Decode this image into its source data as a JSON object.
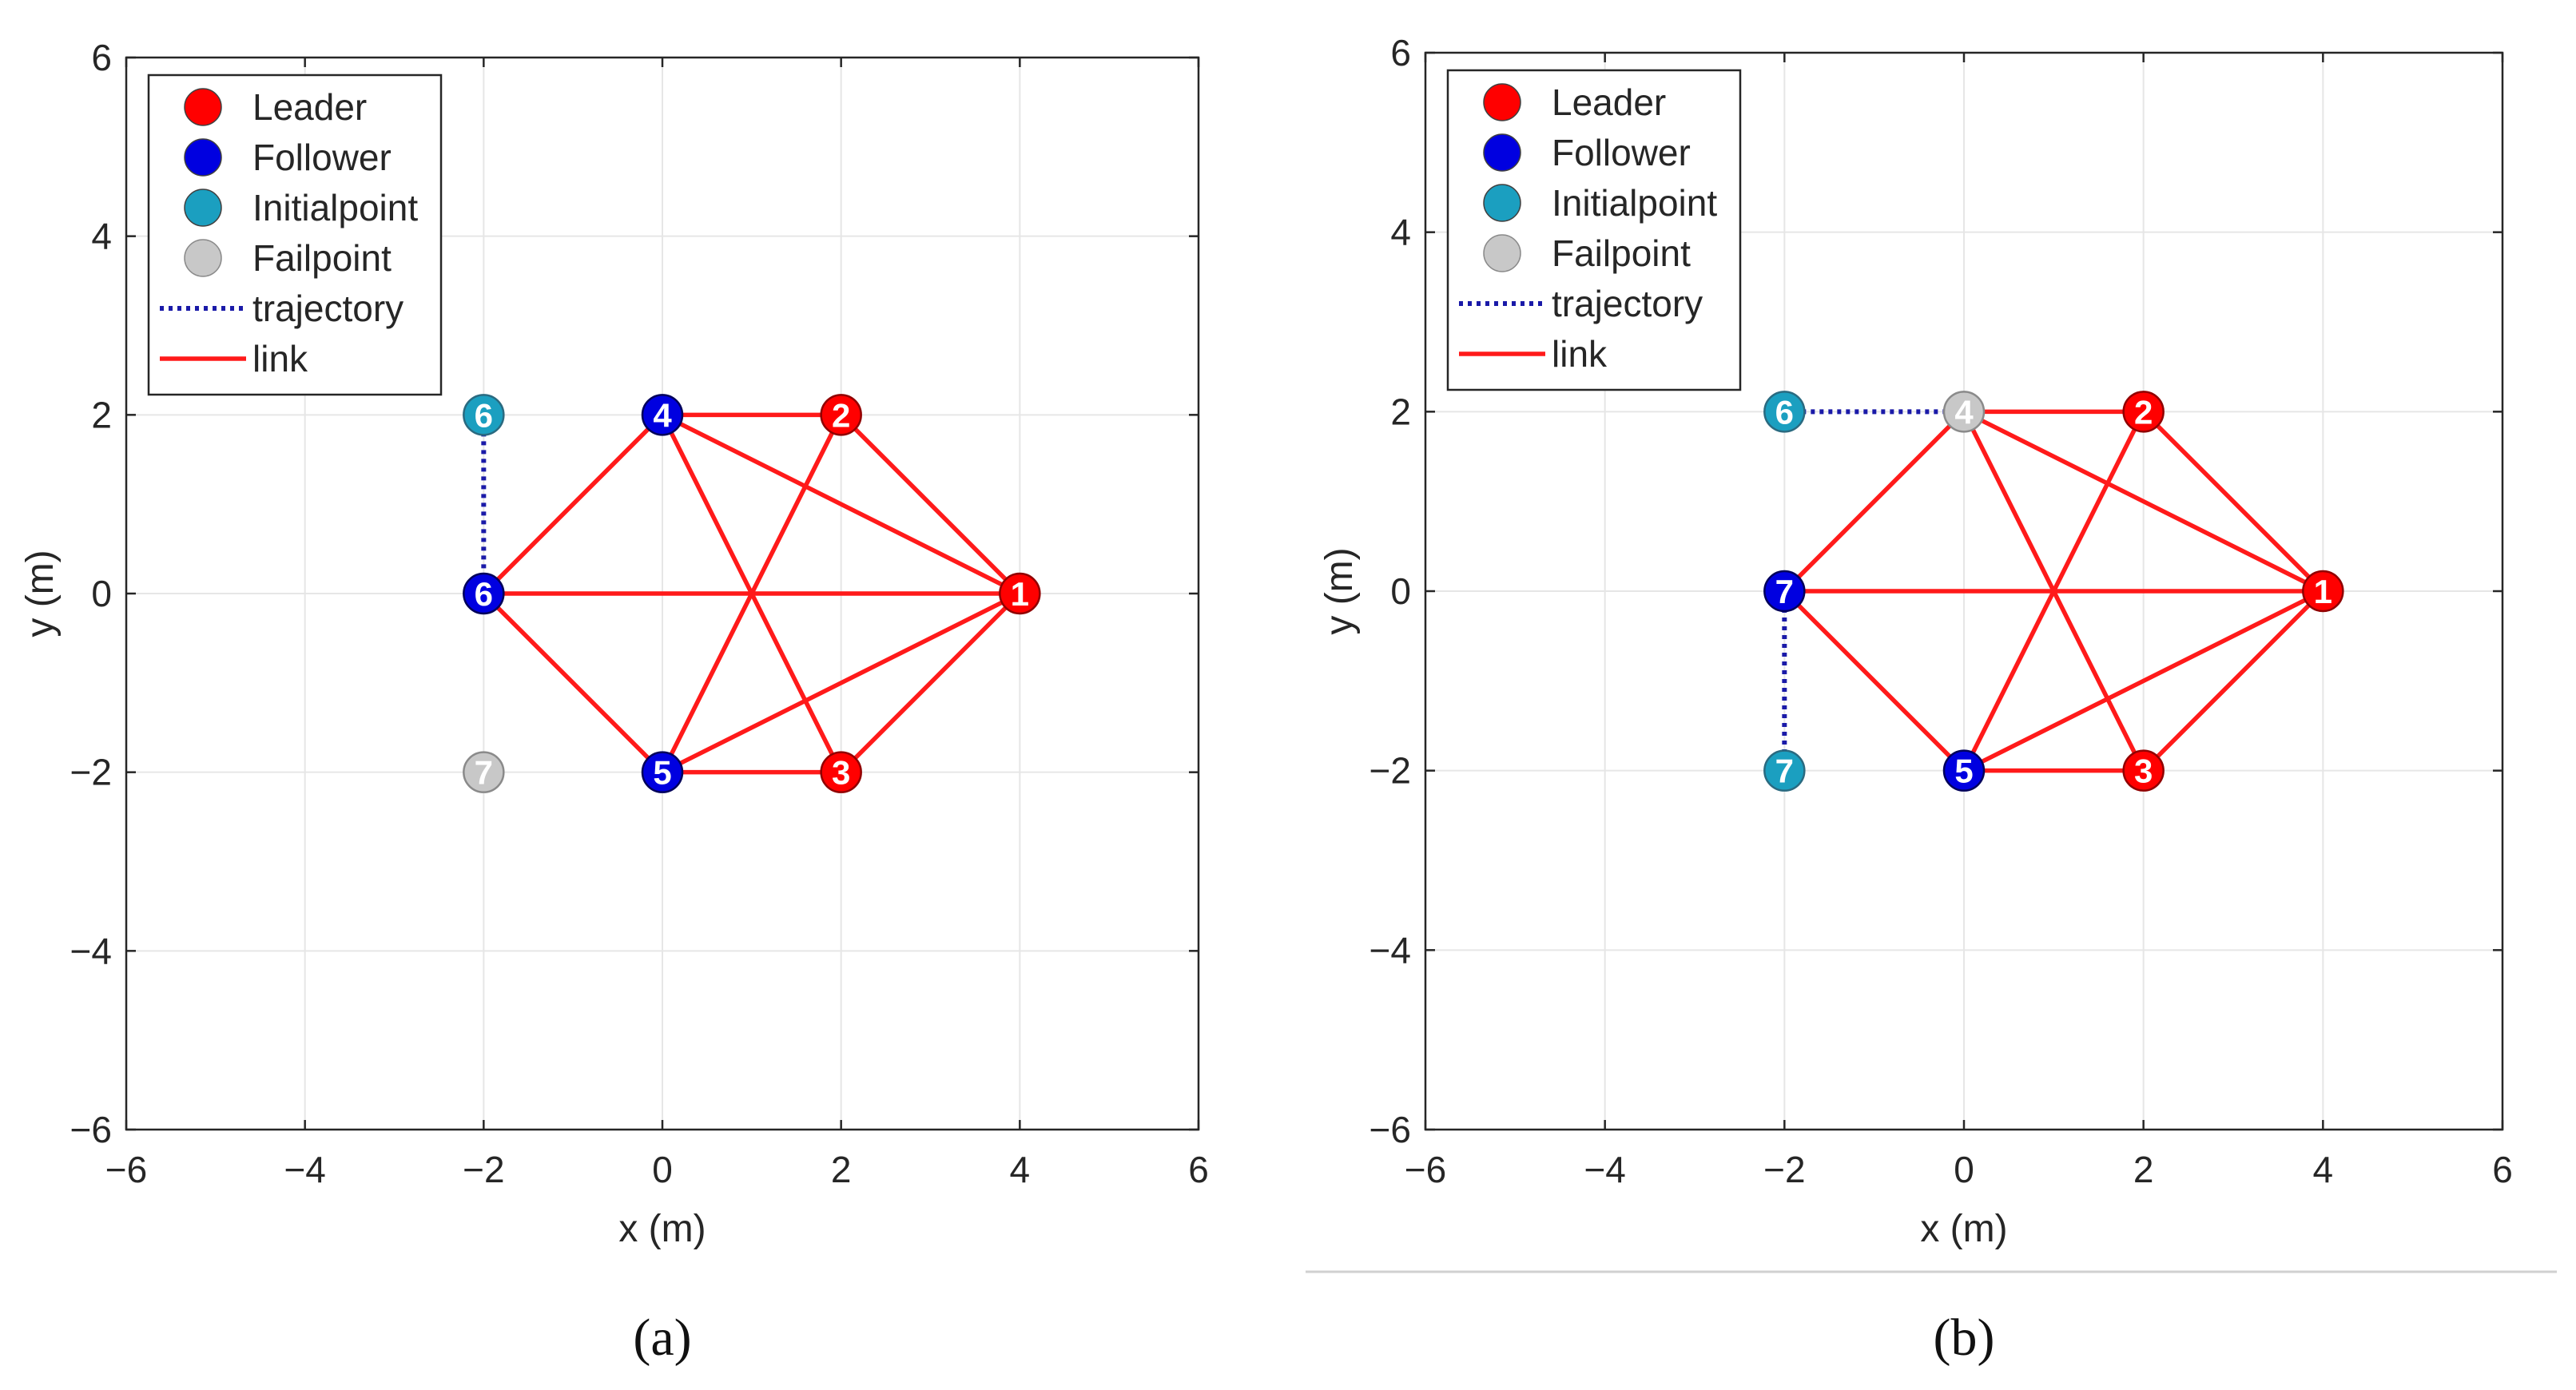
{
  "chart_data": [
    {
      "type": "scatter",
      "panel_label": "(a)",
      "xlabel": "x (m)",
      "ylabel": "y (m)",
      "xlim": [
        -6,
        6
      ],
      "ylim": [
        -6,
        6
      ],
      "xticks": [
        -6,
        -4,
        -2,
        0,
        2,
        4,
        6
      ],
      "yticks": [
        -6,
        -4,
        -2,
        0,
        2,
        4,
        6
      ],
      "grid": true,
      "legend_position": "top-left",
      "legend": [
        {
          "label": "Leader",
          "kind": "marker",
          "color": "#ff0000"
        },
        {
          "label": "Follower",
          "kind": "marker",
          "color": "#0000e0"
        },
        {
          "label": "Initialpoint",
          "kind": "marker",
          "color": "#1b9fc0"
        },
        {
          "label": "Failpoint",
          "kind": "marker",
          "color": "#c8c8c8"
        },
        {
          "label": "trajectory",
          "kind": "dotted",
          "color": "#1a1aa8"
        },
        {
          "label": "link",
          "kind": "line",
          "color": "#ff1a1a"
        }
      ],
      "links": [
        [
          4,
          0,
          2,
          2
        ],
        [
          4,
          0,
          -2,
          0
        ],
        [
          4,
          0,
          0,
          -2
        ],
        [
          4,
          0,
          2,
          -2
        ],
        [
          4,
          0,
          0,
          2
        ],
        [
          2,
          2,
          0,
          2
        ],
        [
          2,
          2,
          0,
          -2
        ],
        [
          0,
          2,
          -2,
          0
        ],
        [
          0,
          2,
          2,
          -2
        ],
        [
          -2,
          0,
          0,
          -2
        ],
        [
          0,
          -2,
          2,
          -2
        ]
      ],
      "trajectories": [
        [
          -2,
          2,
          -2,
          0
        ]
      ],
      "points": [
        {
          "id": "1",
          "x": 4,
          "y": 0,
          "role": "leader"
        },
        {
          "id": "2",
          "x": 2,
          "y": 2,
          "role": "leader"
        },
        {
          "id": "3",
          "x": 2,
          "y": -2,
          "role": "leader"
        },
        {
          "id": "4",
          "x": 0,
          "y": 2,
          "role": "follower"
        },
        {
          "id": "5",
          "x": 0,
          "y": -2,
          "role": "follower"
        },
        {
          "id": "6",
          "x": -2,
          "y": 0,
          "role": "follower"
        },
        {
          "id": "6",
          "x": -2,
          "y": 2,
          "role": "initial"
        },
        {
          "id": "7",
          "x": -2,
          "y": -2,
          "role": "fail"
        }
      ]
    },
    {
      "type": "scatter",
      "panel_label": "(b)",
      "xlabel": "x (m)",
      "ylabel": "y (m)",
      "xlim": [
        -6,
        6
      ],
      "ylim": [
        -6,
        6
      ],
      "xticks": [
        -6,
        -4,
        -2,
        0,
        2,
        4,
        6
      ],
      "yticks": [
        -6,
        -4,
        -2,
        0,
        2,
        4,
        6
      ],
      "grid": true,
      "legend_position": "top-left",
      "legend": [
        {
          "label": "Leader",
          "kind": "marker",
          "color": "#ff0000"
        },
        {
          "label": "Follower",
          "kind": "marker",
          "color": "#0000e0"
        },
        {
          "label": "Initialpoint",
          "kind": "marker",
          "color": "#1b9fc0"
        },
        {
          "label": "Failpoint",
          "kind": "marker",
          "color": "#c8c8c8"
        },
        {
          "label": "trajectory",
          "kind": "dotted",
          "color": "#1a1aa8"
        },
        {
          "label": "link",
          "kind": "line",
          "color": "#ff1a1a"
        }
      ],
      "links": [
        [
          4,
          0,
          2,
          2
        ],
        [
          4,
          0,
          -2,
          0
        ],
        [
          4,
          0,
          0,
          -2
        ],
        [
          4,
          0,
          2,
          -2
        ],
        [
          4,
          0,
          0,
          2
        ],
        [
          2,
          2,
          0,
          2
        ],
        [
          2,
          2,
          0,
          -2
        ],
        [
          0,
          2,
          -2,
          0
        ],
        [
          0,
          2,
          2,
          -2
        ],
        [
          -2,
          0,
          0,
          -2
        ],
        [
          0,
          -2,
          2,
          -2
        ]
      ],
      "trajectories": [
        [
          -2,
          2,
          0,
          2
        ],
        [
          -2,
          0,
          -2,
          -2
        ]
      ],
      "points": [
        {
          "id": "1",
          "x": 4,
          "y": 0,
          "role": "leader"
        },
        {
          "id": "2",
          "x": 2,
          "y": 2,
          "role": "leader"
        },
        {
          "id": "3",
          "x": 2,
          "y": -2,
          "role": "leader"
        },
        {
          "id": "5",
          "x": 0,
          "y": -2,
          "role": "follower"
        },
        {
          "id": "7",
          "x": -2,
          "y": 0,
          "role": "follower"
        },
        {
          "id": "4",
          "x": 0,
          "y": 2,
          "role": "fail"
        },
        {
          "id": "6",
          "x": -2,
          "y": 2,
          "role": "initial"
        },
        {
          "id": "7",
          "x": -2,
          "y": -2,
          "role": "initial"
        }
      ]
    }
  ],
  "colors": {
    "leader": "#ff0000",
    "follower": "#0000e0",
    "initial": "#1b9fc0",
    "fail": "#c8c8c8",
    "link": "#ff1a1a",
    "trajectory": "#1a1aa8",
    "grid": "#e6e6e6",
    "axis": "#262626"
  }
}
